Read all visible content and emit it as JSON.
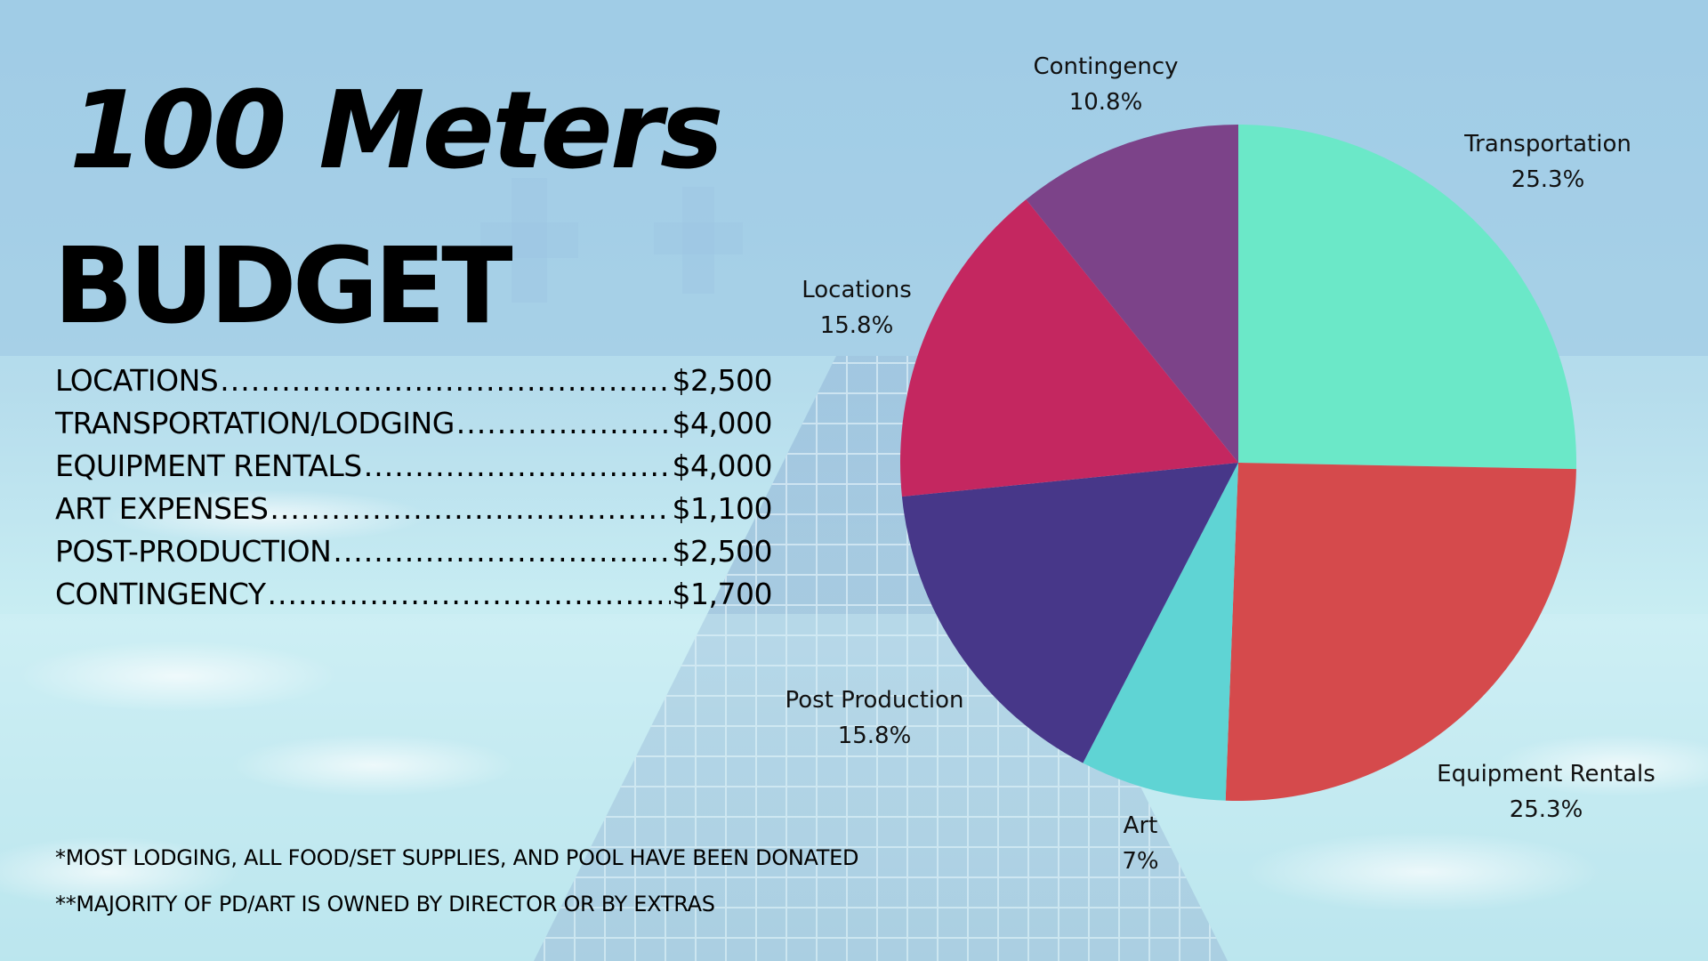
{
  "title": "100 Meters",
  "subtitle": "BUDGET",
  "budget_items": [
    {
      "label": "LOCATIONS",
      "amount": "$2,500"
    },
    {
      "label": "TRANSPORTATION/LODGING",
      "amount": "$4,000"
    },
    {
      "label": "EQUIPMENT RENTALS",
      "amount": "$4,000"
    },
    {
      "label": "ART EXPENSES",
      "amount": "$1,100"
    },
    {
      "label": "POST-PRODUCTION",
      "amount": "$2,500"
    },
    {
      "label": "CONTINGENCY ",
      "amount": "$1,700"
    }
  ],
  "notes": [
    "*MOST LODGING, ALL FOOD/SET SUPPLIES, AND POOL HAVE BEEN DONATED",
    "**MAJORITY OF PD/ART IS OWNED BY DIRECTOR OR BY EXTRAS"
  ],
  "chart_data": {
    "type": "pie",
    "title": "",
    "slices": [
      {
        "label": "Transportation",
        "value": 25.3,
        "value_label": "25.3%",
        "color": "#6be8c8"
      },
      {
        "label": "Equipment Rentals",
        "value": 25.3,
        "value_label": "25.3%",
        "color": "#d54a4c"
      },
      {
        "label": "Art",
        "value": 7,
        "value_label": "7%",
        "color": "#5fd4d4"
      },
      {
        "label": "Post Production",
        "value": 15.8,
        "value_label": "15.8%",
        "color": "#473789"
      },
      {
        "label": "Locations",
        "value": 15.8,
        "value_label": "15.8%",
        "color": "#c42760"
      },
      {
        "label": "Contingency",
        "value": 10.8,
        "value_label": "10.8%",
        "color": "#7c4389"
      }
    ]
  }
}
